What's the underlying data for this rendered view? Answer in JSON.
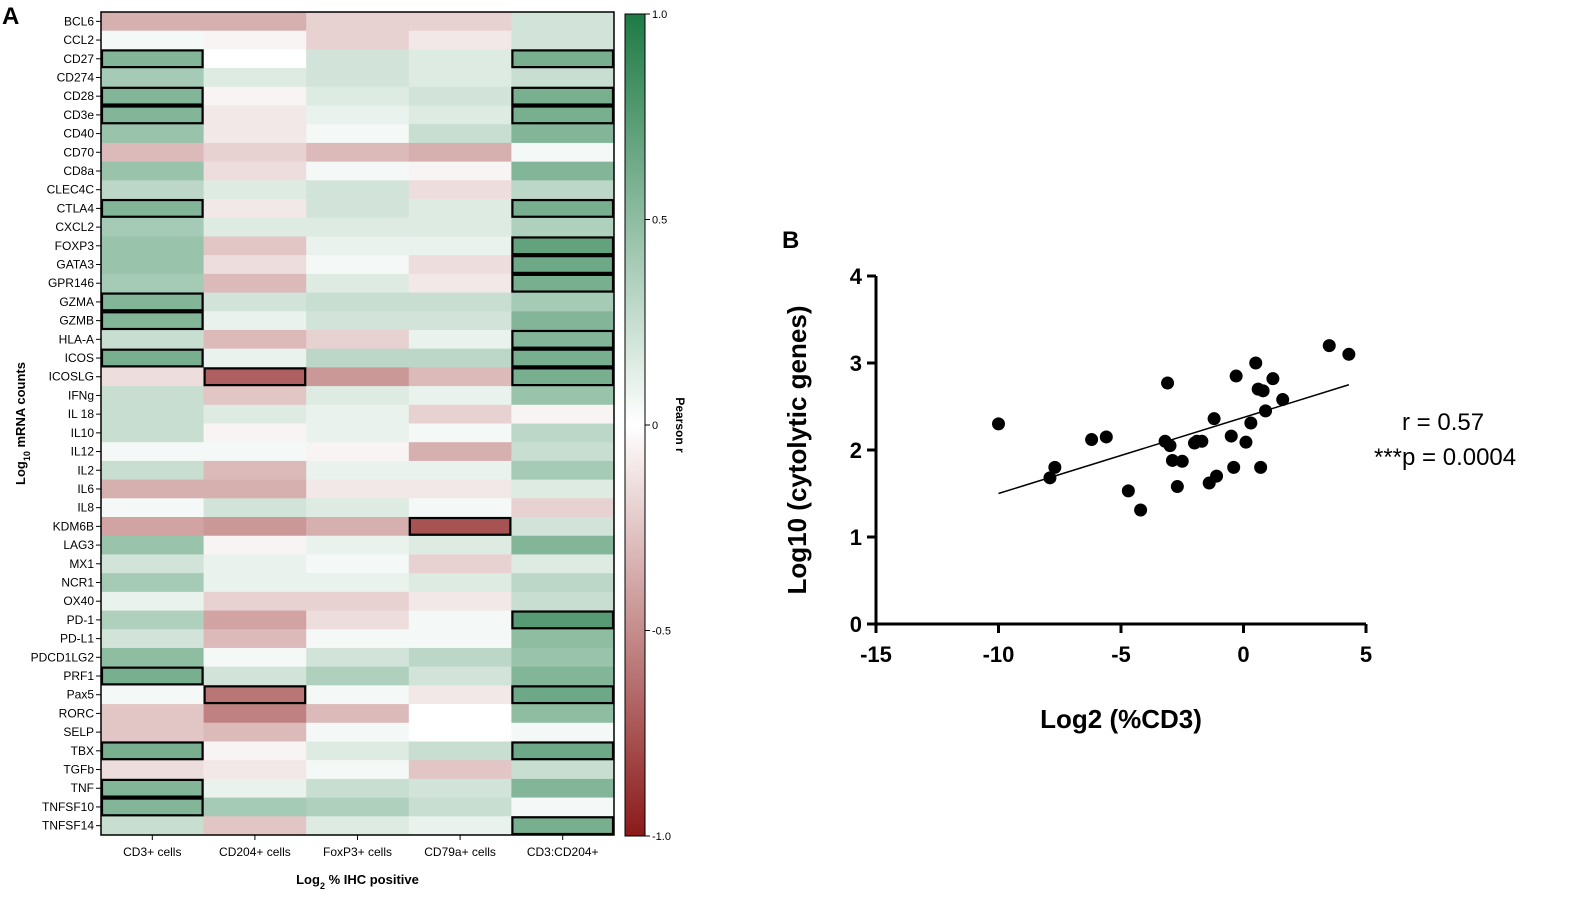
{
  "chart_data": [
    {
      "type": "heatmap",
      "panel": "A",
      "title": "",
      "xlabel_parts": {
        "base": "Log",
        "sub": "2",
        "rest": " % IHC positive"
      },
      "ylabel_parts": {
        "base": "Log",
        "sub": "10",
        "rest": " mRNA counts"
      },
      "columns": [
        "CD3+ cells",
        "CD204+ cells",
        "FoxP3+ cells",
        "CD79a+ cells",
        "CD3:CD204+"
      ],
      "rows": [
        "BCL6",
        "CCL2",
        "CD27",
        "CD274",
        "CD28",
        "CD3e",
        "CD40",
        "CD70",
        "CD8a",
        "CLEC4C",
        "CTLA4",
        "CXCL2",
        "FOXP3",
        "GATA3",
        "GPR146",
        "GZMA",
        "GZMB",
        "HLA-A",
        "ICOS",
        "ICOSLG",
        "IFNg",
        "IL 18",
        "IL10",
        "IL12",
        "IL2",
        "IL6",
        "IL8",
        "KDM6B",
        "LAG3",
        "MX1",
        "NCR1",
        "OX40",
        "PD-1",
        "PD-L1",
        "PDCD1LG2",
        "PRF1",
        "Pax5",
        "RORC",
        "SELP",
        "TBX",
        "TGFb",
        "TNF",
        "TNFSF10",
        "TNFSF14"
      ],
      "values": [
        [
          -0.35,
          -0.35,
          -0.2,
          -0.2,
          0.2
        ],
        [
          0.05,
          -0.05,
          -0.2,
          -0.1,
          0.2
        ],
        [
          0.55,
          0.0,
          0.2,
          0.15,
          0.6
        ],
        [
          0.4,
          0.15,
          0.2,
          0.15,
          0.25
        ],
        [
          0.55,
          -0.05,
          0.15,
          0.2,
          0.6
        ],
        [
          0.55,
          -0.1,
          0.1,
          0.15,
          0.6
        ],
        [
          0.45,
          -0.1,
          0.05,
          0.25,
          0.55
        ],
        [
          -0.3,
          -0.2,
          -0.3,
          -0.35,
          0.05
        ],
        [
          0.45,
          -0.15,
          0.05,
          -0.05,
          0.55
        ],
        [
          0.3,
          0.15,
          0.2,
          -0.15,
          0.3
        ],
        [
          0.55,
          -0.1,
          0.2,
          0.15,
          0.6
        ],
        [
          0.4,
          0.15,
          0.15,
          0.15,
          0.35
        ],
        [
          0.45,
          -0.25,
          0.1,
          0.1,
          0.7
        ],
        [
          0.45,
          -0.15,
          0.05,
          -0.15,
          0.65
        ],
        [
          0.4,
          -0.3,
          0.15,
          -0.1,
          0.6
        ],
        [
          0.55,
          0.2,
          0.25,
          0.25,
          0.4
        ],
        [
          0.55,
          0.1,
          0.2,
          0.2,
          0.55
        ],
        [
          0.25,
          -0.3,
          -0.2,
          0.1,
          0.55
        ],
        [
          0.6,
          0.1,
          0.3,
          0.3,
          0.6
        ],
        [
          -0.15,
          -0.7,
          -0.45,
          -0.3,
          0.6
        ],
        [
          0.25,
          -0.25,
          0.15,
          0.1,
          0.45
        ],
        [
          0.25,
          0.15,
          0.1,
          -0.2,
          -0.05
        ],
        [
          0.25,
          -0.05,
          0.1,
          0.05,
          0.3
        ],
        [
          0.05,
          0.05,
          -0.05,
          -0.35,
          0.25
        ],
        [
          0.25,
          -0.3,
          0.1,
          0.1,
          0.4
        ],
        [
          -0.35,
          -0.35,
          -0.1,
          -0.1,
          0.15
        ],
        [
          0.05,
          0.2,
          0.15,
          0.05,
          -0.2
        ],
        [
          -0.4,
          -0.45,
          -0.35,
          -0.75,
          0.2
        ],
        [
          0.45,
          -0.05,
          0.1,
          0.15,
          0.55
        ],
        [
          0.2,
          0.1,
          0.05,
          -0.2,
          0.15
        ],
        [
          0.4,
          0.1,
          0.1,
          0.15,
          0.3
        ],
        [
          0.1,
          -0.2,
          -0.2,
          -0.1,
          0.25
        ],
        [
          0.35,
          -0.4,
          -0.15,
          0.05,
          0.75
        ],
        [
          0.2,
          -0.3,
          0.05,
          0.05,
          0.5
        ],
        [
          0.5,
          0.05,
          0.2,
          0.3,
          0.45
        ],
        [
          0.6,
          0.2,
          0.35,
          0.2,
          0.55
        ],
        [
          0.05,
          -0.6,
          0.05,
          -0.1,
          0.65
        ],
        [
          -0.25,
          -0.55,
          -0.3,
          0.0,
          0.5
        ],
        [
          -0.25,
          -0.3,
          0.05,
          0.0,
          0.05
        ],
        [
          0.6,
          -0.05,
          0.15,
          0.25,
          0.65
        ],
        [
          -0.15,
          -0.1,
          0.05,
          -0.25,
          0.25
        ],
        [
          0.55,
          0.1,
          0.25,
          0.2,
          0.55
        ],
        [
          0.55,
          0.4,
          0.35,
          0.25,
          0.05
        ],
        [
          0.25,
          -0.25,
          0.15,
          0.1,
          0.6
        ]
      ],
      "significant_cells": [
        [
          2,
          0
        ],
        [
          2,
          4
        ],
        [
          4,
          0
        ],
        [
          4,
          4
        ],
        [
          5,
          0
        ],
        [
          5,
          4
        ],
        [
          10,
          0
        ],
        [
          10,
          4
        ],
        [
          12,
          4
        ],
        [
          13,
          4
        ],
        [
          14,
          4
        ],
        [
          15,
          0
        ],
        [
          16,
          0
        ],
        [
          17,
          4
        ],
        [
          18,
          0
        ],
        [
          18,
          4
        ],
        [
          19,
          1
        ],
        [
          19,
          4
        ],
        [
          27,
          3
        ],
        [
          32,
          4
        ],
        [
          35,
          0
        ],
        [
          36,
          1
        ],
        [
          36,
          4
        ],
        [
          39,
          0
        ],
        [
          39,
          4
        ],
        [
          41,
          0
        ],
        [
          42,
          0
        ],
        [
          43,
          4
        ]
      ],
      "colorbar": {
        "label": "Pearson r",
        "ticks": [
          "1.0",
          "0.5",
          "0",
          "-0.5",
          "-1.0"
        ],
        "tick_values": [
          1.0,
          0.5,
          0,
          -0.5,
          -1.0
        ],
        "range": [
          -1.0,
          1.0
        ]
      },
      "colors": {
        "positive": "#1e7a45",
        "neutral": "#ffffff",
        "negative": "#8b1a1a",
        "border": "#000000"
      }
    },
    {
      "type": "scatter",
      "panel": "B",
      "xlabel": "Log2 (%CD3)",
      "ylabel": "Log10 (cytolytic genes)",
      "xlim": [
        -15,
        5
      ],
      "ylim": [
        0,
        4
      ],
      "xticks": [
        -15,
        -10,
        -5,
        0,
        5
      ],
      "yticks": [
        0,
        1,
        2,
        3,
        4
      ],
      "points": [
        [
          -10.0,
          2.3
        ],
        [
          -7.7,
          1.8
        ],
        [
          -7.9,
          1.68
        ],
        [
          -6.2,
          2.12
        ],
        [
          -5.6,
          2.15
        ],
        [
          -4.7,
          1.53
        ],
        [
          -4.2,
          1.31
        ],
        [
          -3.2,
          2.1
        ],
        [
          -3.1,
          2.77
        ],
        [
          -3.0,
          2.05
        ],
        [
          -2.9,
          1.88
        ],
        [
          -2.7,
          1.58
        ],
        [
          -2.5,
          1.87
        ],
        [
          -2.0,
          2.08
        ],
        [
          -1.9,
          2.1
        ],
        [
          -1.7,
          2.1
        ],
        [
          -1.4,
          1.62
        ],
        [
          -1.2,
          2.36
        ],
        [
          -1.1,
          1.7
        ],
        [
          -0.5,
          2.16
        ],
        [
          -0.4,
          1.8
        ],
        [
          -0.3,
          2.85
        ],
        [
          0.1,
          2.09
        ],
        [
          0.3,
          2.31
        ],
        [
          0.5,
          3.0
        ],
        [
          0.6,
          2.7
        ],
        [
          0.7,
          1.8
        ],
        [
          0.8,
          2.68
        ],
        [
          0.9,
          2.45
        ],
        [
          1.2,
          2.82
        ],
        [
          1.6,
          2.58
        ],
        [
          3.5,
          3.2
        ],
        [
          4.3,
          3.1
        ]
      ],
      "fit_line": {
        "x": [
          -10,
          4.3
        ],
        "y": [
          1.5,
          2.75
        ]
      },
      "annotations": {
        "r": "r = 0.57",
        "p": "***p = 0.0004"
      }
    }
  ],
  "panel_labels": {
    "a": "A",
    "b": "B"
  }
}
